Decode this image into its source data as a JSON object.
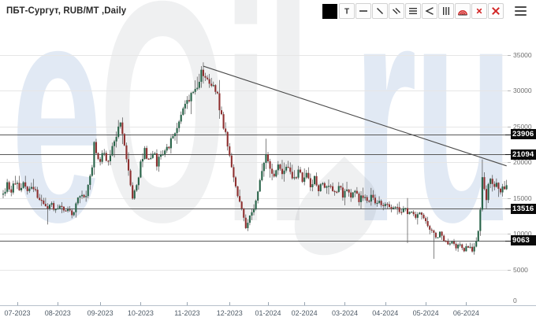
{
  "header": {
    "title": "ПБТ-Сургут, RUB/MT ,Daily"
  },
  "toolbar": {
    "items": [
      {
        "name": "color-swatch-button",
        "icon": "swatch"
      },
      {
        "name": "text-tool-button",
        "icon": "text",
        "glyph": "T"
      },
      {
        "name": "horizontal-line-tool-button",
        "icon": "hline"
      },
      {
        "name": "trend-line-tool-button",
        "icon": "diagonal"
      },
      {
        "name": "parallel-lines-tool-button",
        "icon": "double-diagonal"
      },
      {
        "name": "fib-levels-tool-button",
        "icon": "triple-hlines"
      },
      {
        "name": "pitchfork-tool-button",
        "icon": "pitchfork"
      },
      {
        "name": "time-zones-tool-button",
        "icon": "triple-vlines"
      },
      {
        "name": "fib-arcs-tool-button",
        "icon": "arcs"
      },
      {
        "name": "delete-drawing-button",
        "icon": "x-small"
      },
      {
        "name": "delete-all-drawings-button",
        "icon": "x-large"
      }
    ],
    "menu": {
      "name": "menu-button",
      "icon": "hamburger"
    }
  },
  "watermark": {
    "text": "eOil.ru",
    "left_segments": [
      {
        "text": "e",
        "tone": "blue"
      },
      {
        "text": "Oil",
        "tone": "gray"
      }
    ],
    "right_segments": [
      {
        "text": "ru",
        "tone": "blue"
      }
    ]
  },
  "chart_data": {
    "type": "candlestick",
    "symbol": "ПБТ-Сургут",
    "unit": "RUB/MT",
    "timeframe": "Daily",
    "ylim": [
      0,
      35000
    ],
    "y_ticks": [
      35000,
      30000,
      25000,
      20000,
      15000,
      10000,
      5000,
      0
    ],
    "x_ticks": [
      {
        "label": "07-2023",
        "index": 7
      },
      {
        "label": "08-2023",
        "index": 27
      },
      {
        "label": "09-2023",
        "index": 48
      },
      {
        "label": "10-2023",
        "index": 68
      },
      {
        "label": "11-2023",
        "index": 91
      },
      {
        "label": "12-2023",
        "index": 112
      },
      {
        "label": "01-2024",
        "index": 131
      },
      {
        "label": "02-2024",
        "index": 149
      },
      {
        "label": "03-2024",
        "index": 169
      },
      {
        "label": "04-2024",
        "index": 189
      },
      {
        "label": "05-2024",
        "index": 209
      },
      {
        "label": "06-2024",
        "index": 229
      }
    ],
    "levels": [
      23906,
      21094,
      13516,
      9063
    ],
    "trendline": {
      "from": {
        "index": 99,
        "price": 33450
      },
      "to": {
        "index": 249,
        "price": 19500
      }
    },
    "series": {
      "name": "ПБТ-Сургут daily OHLC (approx.)",
      "count": 250,
      "seed": 11,
      "anchors": [
        [
          0,
          15600
        ],
        [
          2,
          16900
        ],
        [
          4,
          16100
        ],
        [
          6,
          17400
        ],
        [
          8,
          16400
        ],
        [
          10,
          17200
        ],
        [
          12,
          16100
        ],
        [
          14,
          16900
        ],
        [
          16,
          15800
        ],
        [
          18,
          15100
        ],
        [
          20,
          14100
        ],
        [
          22,
          13400
        ],
        [
          24,
          14300
        ],
        [
          26,
          13100
        ],
        [
          28,
          13900
        ],
        [
          30,
          12900
        ],
        [
          32,
          13600
        ],
        [
          34,
          12800
        ],
        [
          36,
          14000
        ],
        [
          38,
          15600
        ],
        [
          40,
          14900
        ],
        [
          42,
          16500
        ],
        [
          44,
          18800
        ],
        [
          45,
          23200
        ],
        [
          46,
          21200
        ],
        [
          48,
          20200
        ],
        [
          50,
          21300
        ],
        [
          52,
          19900
        ],
        [
          54,
          21800
        ],
        [
          56,
          24000
        ],
        [
          58,
          25300
        ],
        [
          60,
          22800
        ],
        [
          62,
          18600
        ],
        [
          64,
          14900
        ],
        [
          66,
          16900
        ],
        [
          68,
          19700
        ],
        [
          70,
          21500
        ],
        [
          72,
          20100
        ],
        [
          74,
          21700
        ],
        [
          76,
          19900
        ],
        [
          78,
          20900
        ],
        [
          80,
          21500
        ],
        [
          82,
          22300
        ],
        [
          84,
          23600
        ],
        [
          86,
          25100
        ],
        [
          88,
          27100
        ],
        [
          90,
          28800
        ],
        [
          92,
          28000
        ],
        [
          94,
          30200
        ],
        [
          96,
          29800
        ],
        [
          98,
          33300
        ],
        [
          100,
          31900
        ],
        [
          102,
          30500
        ],
        [
          104,
          31200
        ],
        [
          106,
          29300
        ],
        [
          108,
          26600
        ],
        [
          110,
          23800
        ],
        [
          112,
          20600
        ],
        [
          114,
          17900
        ],
        [
          116,
          15600
        ],
        [
          118,
          13600
        ],
        [
          120,
          10800
        ],
        [
          122,
          12400
        ],
        [
          124,
          13800
        ],
        [
          126,
          16000
        ],
        [
          128,
          18700
        ],
        [
          130,
          21200
        ],
        [
          132,
          19400
        ],
        [
          134,
          18000
        ],
        [
          136,
          19500
        ],
        [
          138,
          18300
        ],
        [
          140,
          19700
        ],
        [
          142,
          18500
        ],
        [
          144,
          17700
        ],
        [
          146,
          18800
        ],
        [
          148,
          17400
        ],
        [
          150,
          18200
        ],
        [
          152,
          16900
        ],
        [
          154,
          17700
        ],
        [
          156,
          16400
        ],
        [
          158,
          17300
        ],
        [
          160,
          16200
        ],
        [
          162,
          16900
        ],
        [
          164,
          15900
        ],
        [
          166,
          16600
        ],
        [
          168,
          15500
        ],
        [
          170,
          16200
        ],
        [
          172,
          15000
        ],
        [
          174,
          15800
        ],
        [
          176,
          14700
        ],
        [
          178,
          15400
        ],
        [
          180,
          14500
        ],
        [
          182,
          15200
        ],
        [
          184,
          14200
        ],
        [
          186,
          14800
        ],
        [
          188,
          13800
        ],
        [
          190,
          14400
        ],
        [
          192,
          13500
        ],
        [
          194,
          14100
        ],
        [
          196,
          13100
        ],
        [
          198,
          13700
        ],
        [
          200,
          12800
        ],
        [
          202,
          13400
        ],
        [
          204,
          12400
        ],
        [
          206,
          12900
        ],
        [
          208,
          11900
        ],
        [
          210,
          11100
        ],
        [
          212,
          10200
        ],
        [
          214,
          9500
        ],
        [
          216,
          10100
        ],
        [
          218,
          9000
        ],
        [
          220,
          8400
        ],
        [
          222,
          9100
        ],
        [
          224,
          8200
        ],
        [
          226,
          8700
        ],
        [
          228,
          7800
        ],
        [
          230,
          8300
        ],
        [
          232,
          7500
        ],
        [
          233,
          8100
        ],
        [
          234,
          8700
        ],
        [
          235,
          10600
        ],
        [
          236,
          13500
        ],
        [
          237,
          18100
        ],
        [
          238,
          15900
        ],
        [
          239,
          14700
        ],
        [
          240,
          16600
        ],
        [
          241,
          17900
        ],
        [
          242,
          17000
        ],
        [
          243,
          16200
        ],
        [
          244,
          17300
        ],
        [
          245,
          16000
        ],
        [
          246,
          15400
        ],
        [
          247,
          16300
        ],
        [
          248,
          15900
        ],
        [
          249,
          17200
        ]
      ],
      "special_wicks": {
        "22": {
          "low": 11300
        },
        "58": {
          "high": 25450
        },
        "98": {
          "high": 33450
        },
        "130": {
          "high": 23300
        },
        "200": {
          "high": 15000,
          "low": 8700
        },
        "213": {
          "low": 6500
        },
        "237": {
          "high": 20400
        },
        "239": {
          "low": 13520
        }
      }
    },
    "colors": {
      "up": "#266247",
      "down": "#8e2f2f",
      "wick": "#4d4d4d",
      "grid": "#e6e6e6",
      "level": "#585858",
      "trend": "#4a4a4a",
      "axis_text": "#707070",
      "date_text": "#4e5a66",
      "badge_bg": "#0a0a0a",
      "badge_text": "#ffffff",
      "axis_line": "#b7c0cb",
      "tool_red": "#d32626",
      "tool_dark": "#333333"
    },
    "legend_position": "none",
    "grid": "horizontal-only"
  }
}
